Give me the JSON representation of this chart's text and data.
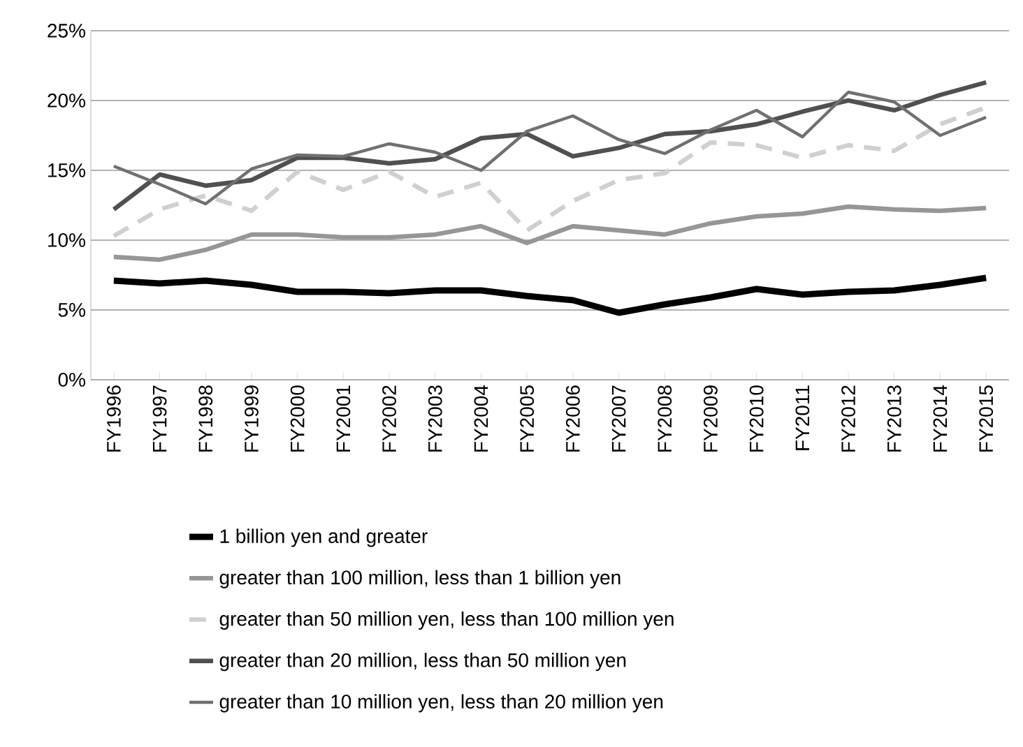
{
  "chart_data": {
    "type": "line",
    "categories": [
      "FY1996",
      "FY1997",
      "FY1998",
      "FY1999",
      "FY2000",
      "FY2001",
      "FY2002",
      "FY2003",
      "FY2004",
      "FY2005",
      "FY2006",
      "FY2007",
      "FY2008",
      "FY2009",
      "FY2010",
      "FY2011",
      "FY2012",
      "FY2013",
      "FY2014",
      "FY2015"
    ],
    "series": [
      {
        "name": "1 billion yen and greater",
        "color": "#000000",
        "values": [
          7.1,
          6.9,
          7.1,
          6.8,
          6.3,
          6.3,
          6.2,
          6.4,
          6.4,
          6.0,
          5.7,
          4.8,
          5.4,
          5.9,
          6.5,
          6.1,
          6.3,
          6.4,
          6.8,
          7.3
        ]
      },
      {
        "name": "greater than 100 million, less than 1 billion yen",
        "color": "#969696",
        "values": [
          8.8,
          8.6,
          9.3,
          10.4,
          10.4,
          10.2,
          10.2,
          10.4,
          11.0,
          9.8,
          11.0,
          10.7,
          10.4,
          11.2,
          11.7,
          11.9,
          12.4,
          12.2,
          12.1,
          12.3
        ]
      },
      {
        "name": "greater than 50 million yen, less than 100 million yen",
        "color": "#d0d0d0",
        "line_style": "dashed",
        "values": [
          10.3,
          12.2,
          13.2,
          12.1,
          14.9,
          13.6,
          14.9,
          13.1,
          14.1,
          10.7,
          12.8,
          14.3,
          14.8,
          17.0,
          16.8,
          15.9,
          16.8,
          16.4,
          18.3,
          19.5
        ]
      },
      {
        "name": "greater than 20 million, less than 50 million yen",
        "color": "#505050",
        "values": [
          12.2,
          14.7,
          13.9,
          14.3,
          15.9,
          15.9,
          15.5,
          15.8,
          17.3,
          17.6,
          16.0,
          16.6,
          17.6,
          17.8,
          18.3,
          19.2,
          20.0,
          19.3,
          20.4,
          21.3
        ]
      },
      {
        "name": "greater than 10 million yen, less than 20 million yen",
        "color": "#707070",
        "values": [
          15.3,
          14.0,
          12.6,
          15.1,
          16.1,
          16.0,
          16.9,
          16.3,
          15.0,
          17.8,
          18.9,
          17.2,
          16.2,
          17.9,
          19.3,
          17.4,
          20.6,
          19.9,
          17.5,
          18.8
        ]
      }
    ],
    "ylim": [
      0,
      25
    ],
    "yticks": [
      {
        "value": 0,
        "label": "0%"
      },
      {
        "value": 5,
        "label": "5%"
      },
      {
        "value": 10,
        "label": "10%"
      },
      {
        "value": 15,
        "label": "15%"
      },
      {
        "value": 20,
        "label": "20%"
      },
      {
        "value": 25,
        "label": "25%"
      }
    ],
    "grid": "y",
    "legend": "bottom",
    "line_style": "solid"
  }
}
